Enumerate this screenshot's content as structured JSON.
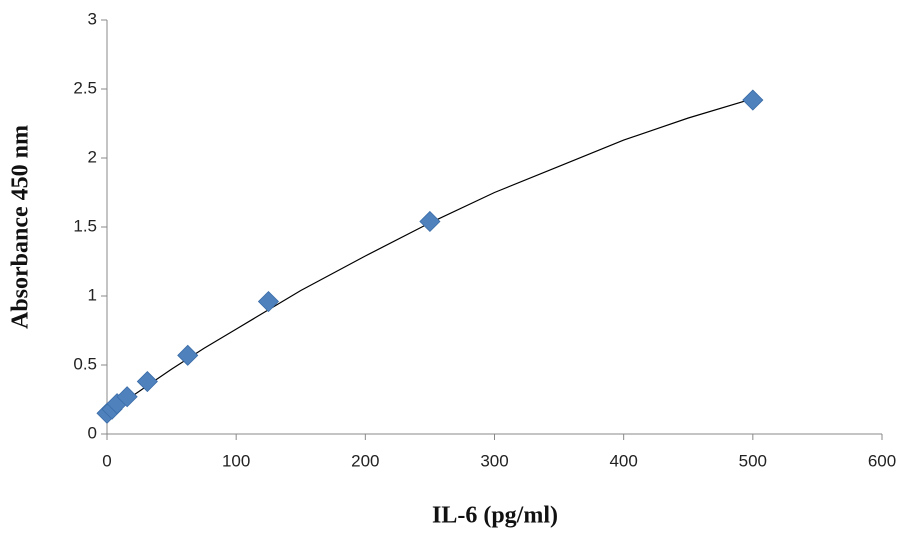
{
  "chart_data": {
    "type": "scatter",
    "x_label": "IL-6 (pg/ml)",
    "y_label": "Absorbance 450 nm",
    "x": [
      0,
      3.9,
      7.8,
      15.6,
      31.25,
      62.5,
      125,
      250,
      500
    ],
    "values": [
      0.15,
      0.18,
      0.22,
      0.27,
      0.38,
      0.57,
      0.96,
      1.54,
      2.42
    ],
    "color": "#4f81bd",
    "trendline": {
      "x": [
        0,
        25,
        50,
        75,
        100,
        150,
        200,
        250,
        300,
        350,
        400,
        450,
        500
      ],
      "values": [
        0.15,
        0.31,
        0.47,
        0.62,
        0.76,
        1.04,
        1.29,
        1.53,
        1.75,
        1.94,
        2.13,
        2.29,
        2.43
      ],
      "color": "#000000"
    },
    "xlim": [
      0,
      600
    ],
    "xticks": [
      0,
      100,
      200,
      300,
      400,
      500,
      600
    ],
    "ylim": [
      0,
      3
    ],
    "yticks": [
      0,
      0.5,
      1,
      1.5,
      2,
      2.5,
      3
    ],
    "grid": false
  }
}
